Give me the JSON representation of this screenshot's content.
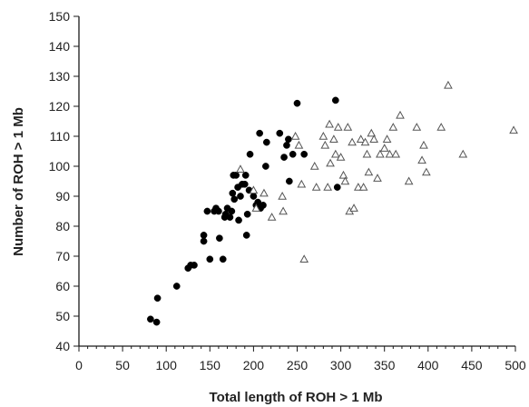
{
  "chart_data": {
    "type": "scatter",
    "xlabel": "Total length of ROH > 1 Mb",
    "ylabel": "Number of ROH > 1 Mb",
    "xlim": [
      0,
      500
    ],
    "ylim": [
      40,
      150
    ],
    "xticks": [
      0,
      50,
      100,
      150,
      200,
      250,
      300,
      350,
      400,
      450,
      500
    ],
    "yticks": [
      40,
      50,
      60,
      70,
      80,
      90,
      100,
      110,
      120,
      130,
      140,
      150
    ],
    "grid": false,
    "legend": "none",
    "series": [
      {
        "marker": "filled-circle",
        "color": "#000000",
        "points": [
          [
            82,
            49
          ],
          [
            89,
            48
          ],
          [
            90,
            56
          ],
          [
            112,
            60
          ],
          [
            125,
            66
          ],
          [
            128,
            67
          ],
          [
            132,
            67
          ],
          [
            143,
            77
          ],
          [
            143,
            75
          ],
          [
            147,
            85
          ],
          [
            150,
            69
          ],
          [
            155,
            85
          ],
          [
            157,
            86
          ],
          [
            160,
            85
          ],
          [
            161,
            76
          ],
          [
            165,
            69
          ],
          [
            167,
            83
          ],
          [
            168,
            84
          ],
          [
            170,
            86
          ],
          [
            173,
            83
          ],
          [
            175,
            85
          ],
          [
            176,
            91
          ],
          [
            177,
            97
          ],
          [
            178,
            89
          ],
          [
            180,
            97
          ],
          [
            182,
            93
          ],
          [
            183,
            82
          ],
          [
            185,
            90
          ],
          [
            187,
            94
          ],
          [
            190,
            94
          ],
          [
            191,
            97
          ],
          [
            192,
            77
          ],
          [
            193,
            84
          ],
          [
            195,
            92
          ],
          [
            196,
            104
          ],
          [
            200,
            90
          ],
          [
            203,
            87
          ],
          [
            205,
            88
          ],
          [
            207,
            111
          ],
          [
            208,
            86
          ],
          [
            211,
            87
          ],
          [
            214,
            100
          ],
          [
            215,
            108
          ],
          [
            230,
            111
          ],
          [
            235,
            103
          ],
          [
            238,
            107
          ],
          [
            240,
            109
          ],
          [
            241,
            95
          ],
          [
            245,
            104
          ],
          [
            250,
            121
          ],
          [
            258,
            104
          ],
          [
            294,
            122
          ],
          [
            296,
            93
          ]
        ]
      },
      {
        "marker": "open-triangle",
        "color": "#555555",
        "points": [
          [
            185,
            99
          ],
          [
            200,
            92
          ],
          [
            203,
            86
          ],
          [
            212,
            91
          ],
          [
            221,
            83
          ],
          [
            233,
            90
          ],
          [
            234,
            85
          ],
          [
            248,
            110
          ],
          [
            252,
            107
          ],
          [
            255,
            94
          ],
          [
            258,
            69
          ],
          [
            270,
            100
          ],
          [
            272,
            93
          ],
          [
            280,
            110
          ],
          [
            282,
            107
          ],
          [
            285,
            93
          ],
          [
            287,
            114
          ],
          [
            288,
            101
          ],
          [
            292,
            109
          ],
          [
            294,
            104
          ],
          [
            297,
            113
          ],
          [
            300,
            103
          ],
          [
            303,
            97
          ],
          [
            305,
            95
          ],
          [
            308,
            113
          ],
          [
            310,
            85
          ],
          [
            313,
            108
          ],
          [
            315,
            86
          ],
          [
            320,
            93
          ],
          [
            323,
            109
          ],
          [
            326,
            93
          ],
          [
            328,
            108
          ],
          [
            330,
            104
          ],
          [
            332,
            98
          ],
          [
            335,
            111
          ],
          [
            338,
            109
          ],
          [
            342,
            96
          ],
          [
            345,
            104
          ],
          [
            350,
            106
          ],
          [
            353,
            109
          ],
          [
            356,
            104
          ],
          [
            360,
            113
          ],
          [
            363,
            104
          ],
          [
            368,
            117
          ],
          [
            378,
            95
          ],
          [
            387,
            113
          ],
          [
            393,
            102
          ],
          [
            395,
            107
          ],
          [
            398,
            98
          ],
          [
            415,
            113
          ],
          [
            423,
            127
          ],
          [
            440,
            104
          ],
          [
            498,
            112
          ]
        ]
      }
    ]
  }
}
